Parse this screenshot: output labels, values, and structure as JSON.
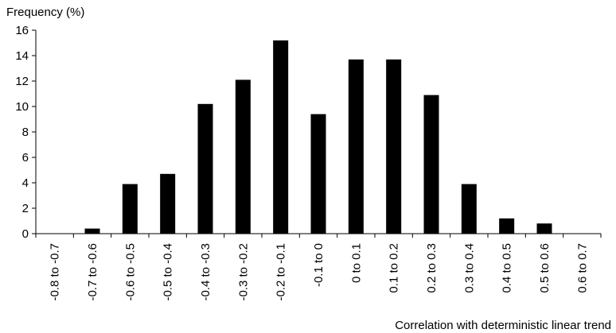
{
  "chart_data": {
    "type": "bar",
    "title": "",
    "ylabel": "Frequency (%)",
    "xlabel": "Correlation with deterministic linear trend",
    "ylim": [
      0,
      16
    ],
    "yticks": [
      0,
      2,
      4,
      6,
      8,
      10,
      12,
      14,
      16
    ],
    "categories": [
      "-0.8 to -0.7",
      "-0.7 to -0.6",
      "-0.6 to -0.5",
      "-0.5 to -0.4",
      "-0.4 to -0.3",
      "-0.3 to -0.2",
      "-0.2 to -0.1",
      "-0.1 to 0",
      "0 to 0.1",
      "0.1 to 0.2",
      "0.2 to 0.3",
      "0.3 to 0.4",
      "0.4 to 0.5",
      "0.5 to 0.6",
      "0.6 to 0.7"
    ],
    "values": [
      0,
      0.4,
      3.9,
      4.7,
      10.2,
      12.1,
      15.2,
      9.4,
      13.7,
      13.7,
      10.9,
      3.9,
      1.2,
      0.8,
      0
    ],
    "bar_color": "#000000",
    "grid": false,
    "legend": "none"
  }
}
